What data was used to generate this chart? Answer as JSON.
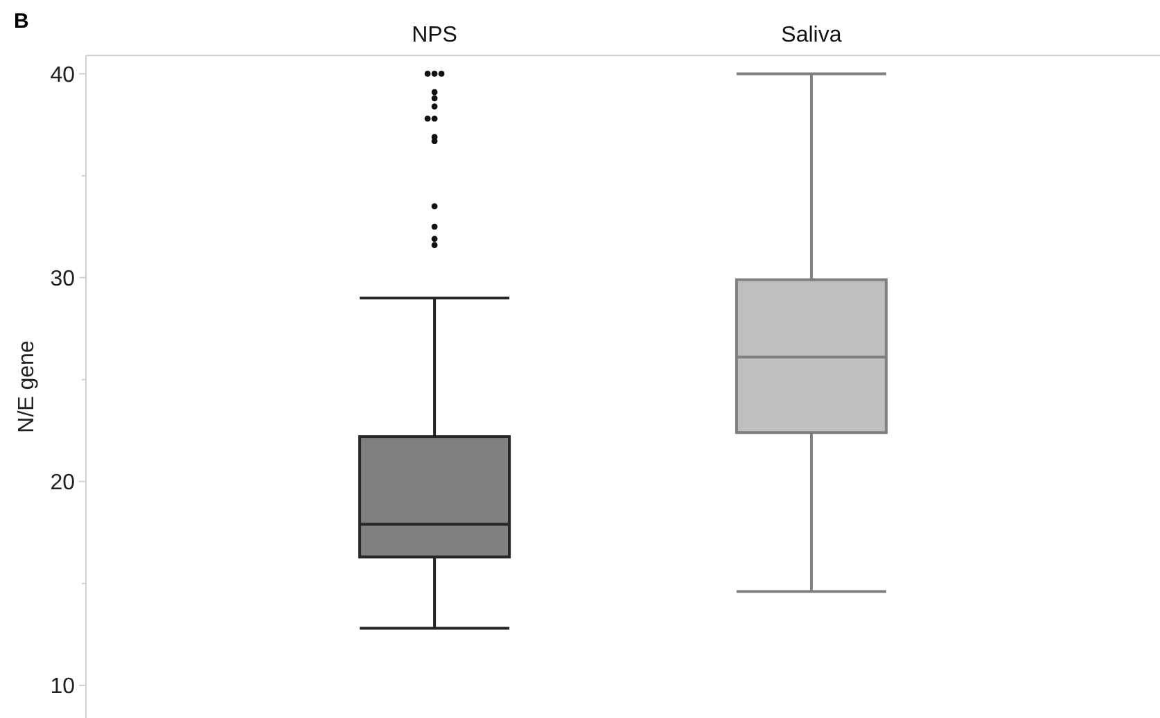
{
  "chart_data": {
    "type": "box",
    "title": "B",
    "ylabel": "N/E gene",
    "categories": [
      "NPS",
      "Saliva"
    ],
    "colors": [
      "#7f7f7f",
      "#bfbfbf"
    ],
    "boxes": [
      {
        "low": 12.8,
        "q1": 16.3,
        "median": 17.9,
        "q3": 22.2,
        "high": 29.0,
        "outliers": [
          40,
          40,
          40,
          39.1,
          38.8,
          38.4,
          37.8,
          37.8,
          36.9,
          36.7,
          33.5,
          32.5,
          31.9,
          31.6
        ]
      },
      {
        "low": 14.6,
        "q1": 22.4,
        "median": 26.1,
        "q3": 29.9,
        "high": 40
      }
    ],
    "ylim": [
      8.4,
      40.9
    ],
    "yticks": [
      10,
      {
        "value": 15,
        "label": null
      },
      20,
      {
        "value": 25,
        "label": null
      },
      30,
      {
        "value": 35,
        "label": null
      },
      40
    ]
  }
}
